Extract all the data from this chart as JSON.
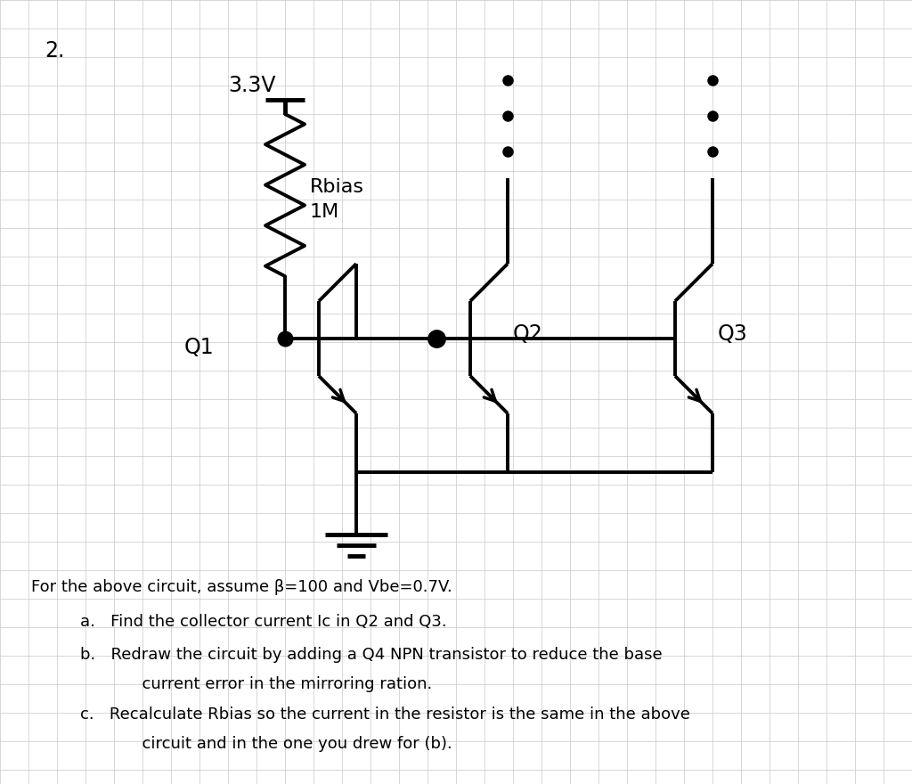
{
  "bg_color": "#ffffff",
  "grid_color": "#c8c8c8",
  "line_color": "#000000",
  "title_number": "2.",
  "voltage_label": "3.3V",
  "problem_text_line1": "For the above circuit, assume β=100 and Vbe=0.7V.",
  "problem_text_a": "a.   Find the collector current Ic in Q2 and Q3.",
  "problem_text_b1": "b.   Redraw the circuit by adding a Q4 NPN transistor to reduce the base",
  "problem_text_b2": "      current error in the mirroring ration.",
  "problem_text_c1": "c.   Recalculate Rbias so the current in the resistor is the same in the above",
  "problem_text_c2": "      circuit and in the one you drew for (b).",
  "fig_width": 10.24,
  "fig_height": 8.8,
  "dpi": 100
}
